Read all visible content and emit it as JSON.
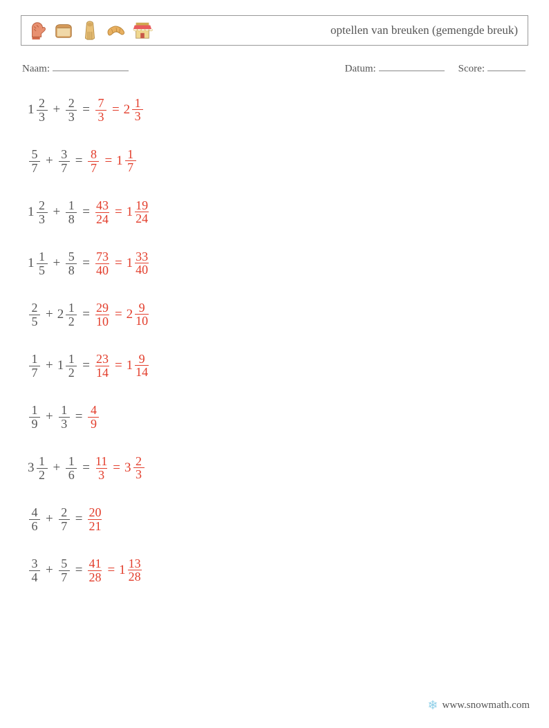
{
  "header": {
    "title": "optellen van breuken (gemengde breuk)",
    "icons": [
      "mitt-icon",
      "bread-icon",
      "baguette-icon",
      "croissant-icon",
      "shop-icon"
    ]
  },
  "meta": {
    "name_label": "Naam:",
    "date_label": "Datum:",
    "score_label": "Score:"
  },
  "footer": {
    "site": "www.snowmath.com"
  },
  "text_color": "#555555",
  "answer_color": "#e23c2a",
  "problems": [
    {
      "left": {
        "whole": "1",
        "num": "2",
        "den": "3"
      },
      "right": {
        "whole": "",
        "num": "2",
        "den": "3"
      },
      "improper": {
        "num": "7",
        "den": "3"
      },
      "mixed": {
        "whole": "2",
        "num": "1",
        "den": "3"
      }
    },
    {
      "left": {
        "whole": "",
        "num": "5",
        "den": "7"
      },
      "right": {
        "whole": "",
        "num": "3",
        "den": "7"
      },
      "improper": {
        "num": "8",
        "den": "7"
      },
      "mixed": {
        "whole": "1",
        "num": "1",
        "den": "7"
      }
    },
    {
      "left": {
        "whole": "1",
        "num": "2",
        "den": "3"
      },
      "right": {
        "whole": "",
        "num": "1",
        "den": "8"
      },
      "improper": {
        "num": "43",
        "den": "24"
      },
      "mixed": {
        "whole": "1",
        "num": "19",
        "den": "24"
      }
    },
    {
      "left": {
        "whole": "1",
        "num": "1",
        "den": "5"
      },
      "right": {
        "whole": "",
        "num": "5",
        "den": "8"
      },
      "improper": {
        "num": "73",
        "den": "40"
      },
      "mixed": {
        "whole": "1",
        "num": "33",
        "den": "40"
      }
    },
    {
      "left": {
        "whole": "",
        "num": "2",
        "den": "5"
      },
      "right": {
        "whole": "2",
        "num": "1",
        "den": "2"
      },
      "improper": {
        "num": "29",
        "den": "10"
      },
      "mixed": {
        "whole": "2",
        "num": "9",
        "den": "10"
      }
    },
    {
      "left": {
        "whole": "",
        "num": "1",
        "den": "7"
      },
      "right": {
        "whole": "1",
        "num": "1",
        "den": "2"
      },
      "improper": {
        "num": "23",
        "den": "14"
      },
      "mixed": {
        "whole": "1",
        "num": "9",
        "den": "14"
      }
    },
    {
      "left": {
        "whole": "",
        "num": "1",
        "den": "9"
      },
      "right": {
        "whole": "",
        "num": "1",
        "den": "3"
      },
      "improper": {
        "num": "4",
        "den": "9"
      },
      "mixed": null
    },
    {
      "left": {
        "whole": "3",
        "num": "1",
        "den": "2"
      },
      "right": {
        "whole": "",
        "num": "1",
        "den": "6"
      },
      "improper": {
        "num": "11",
        "den": "3"
      },
      "mixed": {
        "whole": "3",
        "num": "2",
        "den": "3"
      }
    },
    {
      "left": {
        "whole": "",
        "num": "4",
        "den": "6"
      },
      "right": {
        "whole": "",
        "num": "2",
        "den": "7"
      },
      "improper": {
        "num": "20",
        "den": "21"
      },
      "mixed": null
    },
    {
      "left": {
        "whole": "",
        "num": "3",
        "den": "4"
      },
      "right": {
        "whole": "",
        "num": "5",
        "den": "7"
      },
      "improper": {
        "num": "41",
        "den": "28"
      },
      "mixed": {
        "whole": "1",
        "num": "13",
        "den": "28"
      }
    }
  ]
}
